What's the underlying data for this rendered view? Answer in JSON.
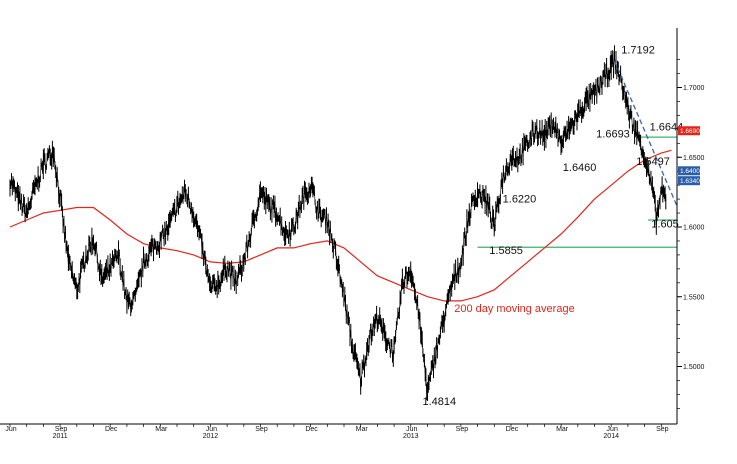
{
  "chart_data": {
    "type": "line",
    "title": "",
    "xlabel": "",
    "ylabel": "",
    "ylim": [
      1.455,
      1.735
    ],
    "grid": false,
    "y_ticks": [
      {
        "value": 1.5,
        "label": "1.5000"
      },
      {
        "value": 1.55,
        "label": "1.5500"
      },
      {
        "value": 1.6,
        "label": "1.6000"
      },
      {
        "value": 1.65,
        "label": "1.6500"
      },
      {
        "value": 1.7,
        "label": "1.7000"
      }
    ],
    "x_ticks": [
      {
        "t": 0.0,
        "label": "Jun"
      },
      {
        "t": 3.0,
        "label": "Sep"
      },
      {
        "t": 6.0,
        "label": "Dec"
      },
      {
        "t": 9.0,
        "label": "Mar"
      },
      {
        "t": 12.0,
        "label": "Jun"
      },
      {
        "t": 15.0,
        "label": "Sep"
      },
      {
        "t": 18.0,
        "label": "Dec"
      },
      {
        "t": 21.0,
        "label": "Mar"
      },
      {
        "t": 24.0,
        "label": "Jun"
      },
      {
        "t": 27.0,
        "label": "Sep"
      },
      {
        "t": 30.0,
        "label": "Dec"
      },
      {
        "t": 33.0,
        "label": "Mar"
      },
      {
        "t": 36.0,
        "label": "Jun"
      },
      {
        "t": 39.0,
        "label": "Sep"
      }
    ],
    "year_labels": [
      {
        "t": 3.0,
        "label": "2011"
      },
      {
        "t": 12.0,
        "label": "2012"
      },
      {
        "t": 24.0,
        "label": "2013"
      },
      {
        "t": 36.0,
        "label": "2014"
      }
    ],
    "series": [
      {
        "name": "",
        "style": "price",
        "color": "#000000",
        "points": [
          [
            0.0,
            1.634
          ],
          [
            0.5,
            1.62
          ],
          [
            1.0,
            1.61
          ],
          [
            1.5,
            1.628
          ],
          [
            2.0,
            1.645
          ],
          [
            2.6,
            1.655
          ],
          [
            3.0,
            1.62
          ],
          [
            3.5,
            1.575
          ],
          [
            4.0,
            1.555
          ],
          [
            4.5,
            1.578
          ],
          [
            5.0,
            1.592
          ],
          [
            5.5,
            1.562
          ],
          [
            6.0,
            1.57
          ],
          [
            6.5,
            1.58
          ],
          [
            7.0,
            1.545
          ],
          [
            7.5,
            1.548
          ],
          [
            8.0,
            1.575
          ],
          [
            8.5,
            1.585
          ],
          [
            9.0,
            1.59
          ],
          [
            9.5,
            1.6
          ],
          [
            10.0,
            1.615
          ],
          [
            10.5,
            1.625
          ],
          [
            11.0,
            1.61
          ],
          [
            11.5,
            1.585
          ],
          [
            12.0,
            1.555
          ],
          [
            12.5,
            1.56
          ],
          [
            13.0,
            1.572
          ],
          [
            13.5,
            1.56
          ],
          [
            14.0,
            1.575
          ],
          [
            14.5,
            1.6
          ],
          [
            15.0,
            1.625
          ],
          [
            15.5,
            1.615
          ],
          [
            16.0,
            1.61
          ],
          [
            16.5,
            1.595
          ],
          [
            17.0,
            1.6
          ],
          [
            17.5,
            1.62
          ],
          [
            18.0,
            1.63
          ],
          [
            18.5,
            1.61
          ],
          [
            19.0,
            1.605
          ],
          [
            19.5,
            1.58
          ],
          [
            20.0,
            1.55
          ],
          [
            20.5,
            1.515
          ],
          [
            21.0,
            1.49
          ],
          [
            21.5,
            1.52
          ],
          [
            22.0,
            1.535
          ],
          [
            22.5,
            1.52
          ],
          [
            23.0,
            1.51
          ],
          [
            23.5,
            1.56
          ],
          [
            24.0,
            1.57
          ],
          [
            24.5,
            1.535
          ],
          [
            25.0,
            1.4814
          ],
          [
            25.5,
            1.51
          ],
          [
            26.0,
            1.535
          ],
          [
            26.5,
            1.56
          ],
          [
            27.0,
            1.575
          ],
          [
            27.5,
            1.61
          ],
          [
            28.0,
            1.625
          ],
          [
            28.5,
            1.62
          ],
          [
            29.0,
            1.6
          ],
          [
            29.5,
            1.635
          ],
          [
            30.0,
            1.65
          ],
          [
            30.5,
            1.65
          ],
          [
            31.0,
            1.66
          ],
          [
            31.5,
            1.67
          ],
          [
            32.0,
            1.665
          ],
          [
            32.5,
            1.675
          ],
          [
            33.0,
            1.66
          ],
          [
            33.5,
            1.67
          ],
          [
            34.0,
            1.68
          ],
          [
            34.5,
            1.69
          ],
          [
            35.0,
            1.695
          ],
          [
            35.5,
            1.705
          ],
          [
            36.0,
            1.715
          ],
          [
            36.2,
            1.7192
          ],
          [
            36.6,
            1.705
          ],
          [
            37.0,
            1.685
          ],
          [
            37.4,
            1.67
          ],
          [
            37.8,
            1.66
          ],
          [
            38.2,
            1.64
          ],
          [
            38.5,
            1.625
          ],
          [
            38.7,
            1.605
          ],
          [
            39.0,
            1.625
          ],
          [
            39.3,
            1.62
          ]
        ]
      },
      {
        "name": "200 day moving average",
        "style": "line",
        "color": "#e0261b",
        "points": [
          [
            0.0,
            1.6
          ],
          [
            1.0,
            1.605
          ],
          [
            2.0,
            1.61
          ],
          [
            3.0,
            1.612
          ],
          [
            4.0,
            1.614
          ],
          [
            5.0,
            1.614
          ],
          [
            6.0,
            1.605
          ],
          [
            7.0,
            1.595
          ],
          [
            8.0,
            1.588
          ],
          [
            9.0,
            1.585
          ],
          [
            10.0,
            1.583
          ],
          [
            11.0,
            1.58
          ],
          [
            12.0,
            1.575
          ],
          [
            13.0,
            1.574
          ],
          [
            14.0,
            1.575
          ],
          [
            15.0,
            1.58
          ],
          [
            16.0,
            1.585
          ],
          [
            17.0,
            1.585
          ],
          [
            18.0,
            1.588
          ],
          [
            19.0,
            1.59
          ],
          [
            20.0,
            1.585
          ],
          [
            21.0,
            1.575
          ],
          [
            22.0,
            1.565
          ],
          [
            23.0,
            1.56
          ],
          [
            24.0,
            1.555
          ],
          [
            25.0,
            1.55
          ],
          [
            26.0,
            1.547
          ],
          [
            27.0,
            1.547
          ],
          [
            28.0,
            1.55
          ],
          [
            29.0,
            1.555
          ],
          [
            30.0,
            1.565
          ],
          [
            31.0,
            1.575
          ],
          [
            32.0,
            1.585
          ],
          [
            33.0,
            1.595
          ],
          [
            34.0,
            1.607
          ],
          [
            35.0,
            1.62
          ],
          [
            36.0,
            1.63
          ],
          [
            37.0,
            1.64
          ],
          [
            38.0,
            1.648
          ],
          [
            39.0,
            1.653
          ],
          [
            39.6,
            1.655
          ]
        ]
      }
    ],
    "horizontal_lines": [
      {
        "value": 1.5855,
        "t_start": 28.0,
        "t_end": 40.0,
        "color": "#3cb371"
      },
      {
        "value": 1.6644,
        "t_start": 37.8,
        "t_end": 40.0,
        "color": "#3cb371"
      },
      {
        "value": 1.605,
        "t_start": 38.2,
        "t_end": 40.0,
        "color": "#3cb371"
      }
    ],
    "trend_lines": [
      {
        "from": [
          36.2,
          1.7192
        ],
        "to": [
          40.0,
          1.615
        ],
        "color": "#3a64b0",
        "dash": true
      }
    ],
    "annotations": [
      {
        "label": "1.7192",
        "t": 36.6,
        "value": 1.7242
      },
      {
        "label": "1.6693",
        "t": 35.1,
        "value": 1.664
      },
      {
        "label": "1.6644",
        "t": 38.3,
        "value": 1.669
      },
      {
        "label": "1.6497",
        "t": 37.5,
        "value": 1.6445
      },
      {
        "label": "1.6460",
        "t": 33.1,
        "value": 1.64
      },
      {
        "label": "1.6220",
        "t": 29.5,
        "value": 1.6175
      },
      {
        "label": "1.5855",
        "t": 28.7,
        "value": 1.5805
      },
      {
        "label": "1.605",
        "t": 38.4,
        "value": 1.5995
      },
      {
        "label": "1.4814",
        "t": 24.7,
        "value": 1.4725
      }
    ],
    "series_label": {
      "label": "200 day moving average",
      "t": 26.6,
      "value": 1.539
    },
    "last_value_badges": [
      {
        "label": "1.6690",
        "value": 1.669,
        "color": "#e0261b"
      },
      {
        "label": "1.6400",
        "value": 1.6403,
        "color": "#2a5ea8"
      },
      {
        "label": "1.6340",
        "value": 1.6332,
        "color": "#2a5ea8"
      }
    ]
  }
}
